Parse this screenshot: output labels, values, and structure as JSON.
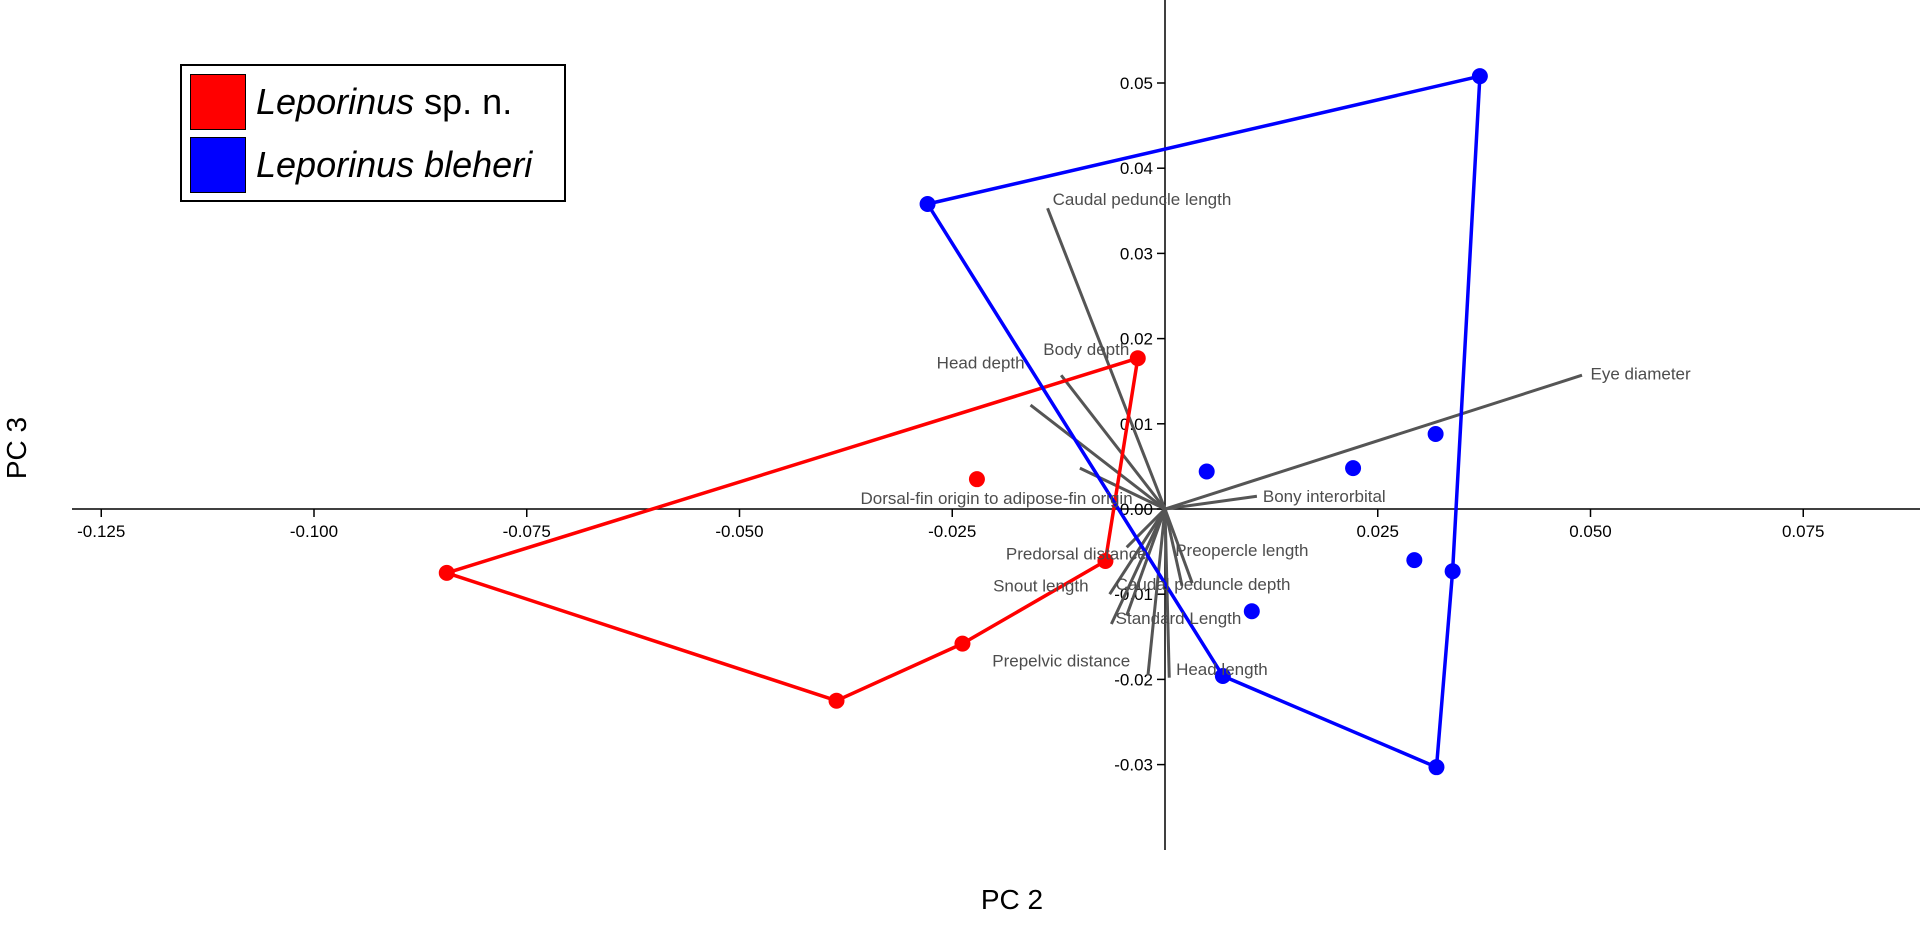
{
  "chart_data": {
    "type": "scatter",
    "title": "",
    "xlabel": "PC 2",
    "ylabel": "PC 3",
    "xlim": [
      -0.14,
      0.09
    ],
    "ylim": [
      -0.04,
      0.06
    ],
    "x_ticks": [
      -0.125,
      -0.1,
      -0.075,
      -0.05,
      -0.025,
      0.025,
      0.05,
      0.075
    ],
    "x_tick_labels": [
      "-0.125",
      "-0.100",
      "-0.075",
      "-0.050",
      "-0.025",
      "0.025",
      "0.050",
      "0.075"
    ],
    "y_ticks": [
      0.05,
      0.04,
      0.03,
      0.02,
      0.01,
      0.0,
      -0.01,
      -0.02,
      -0.03
    ],
    "y_tick_labels": [
      "0.05",
      "0.04",
      "0.03",
      "0.02",
      "0.01",
      "0.00",
      "-0.01",
      "-0.02",
      "-0.03"
    ],
    "grid": false,
    "legend_position": "top-left",
    "series": [
      {
        "name_main": "Leporinus",
        "name_suffix": "sp. n.",
        "color": "#ff0000",
        "points": [
          [
            -0.0844,
            -0.0075
          ],
          [
            -0.0386,
            -0.0225
          ],
          [
            -0.0238,
            -0.0158
          ],
          [
            -0.007,
            -0.0061
          ],
          [
            -0.0032,
            0.0177
          ],
          [
            -0.0221,
            0.0035
          ]
        ],
        "hull": [
          [
            -0.0844,
            -0.0075
          ],
          [
            -0.0386,
            -0.0225
          ],
          [
            -0.0238,
            -0.0158
          ],
          [
            -0.007,
            -0.0061
          ],
          [
            -0.0032,
            0.0177
          ]
        ]
      },
      {
        "name_main": "Leporinus bleheri",
        "name_suffix": "",
        "color": "#0000ff",
        "points": [
          [
            -0.0279,
            0.0358
          ],
          [
            0.037,
            0.0508
          ],
          [
            0.0319,
            -0.0303
          ],
          [
            0.0068,
            -0.0196
          ],
          [
            0.0338,
            -0.0073
          ],
          [
            0.0293,
            -0.006
          ],
          [
            0.0318,
            0.0088
          ],
          [
            0.0221,
            0.0048
          ],
          [
            0.0049,
            0.0044
          ],
          [
            0.0102,
            -0.012
          ]
        ],
        "hull": [
          [
            -0.0279,
            0.0358
          ],
          [
            0.037,
            0.0508
          ],
          [
            0.0338,
            -0.0073
          ],
          [
            0.0319,
            -0.0303
          ],
          [
            0.0068,
            -0.0196
          ]
        ]
      }
    ],
    "loadings": [
      {
        "label": "Caudal peduncle length",
        "tip": [
          -0.0138,
          0.0353
        ],
        "label_at": [
          -0.0132,
          0.0364
        ],
        "anchor": "start"
      },
      {
        "label": "Eye diameter",
        "tip": [
          0.049,
          0.0157
        ],
        "label_at": [
          0.05,
          0.0159
        ],
        "anchor": "start"
      },
      {
        "label": "Head depth",
        "tip": [
          -0.0158,
          0.0122
        ],
        "label_at": [
          -0.0165,
          0.0172
        ],
        "anchor": "end"
      },
      {
        "label": "Body depth",
        "tip": [
          -0.0122,
          0.0157
        ],
        "label_at": [
          -0.0143,
          0.0188
        ],
        "anchor": "start"
      },
      {
        "label": "Bony interorbital",
        "tip": [
          0.0108,
          0.0015
        ],
        "label_at": [
          0.0115,
          0.0015
        ],
        "anchor": "start"
      },
      {
        "label": "Dorsal-fin origin to adipose-fin origin",
        "tip": [
          -0.01,
          0.0048
        ],
        "label_at": [
          -0.0038,
          0.0013
        ],
        "anchor": "end"
      },
      {
        "label": "Predorsal distance",
        "tip": [
          -0.0045,
          -0.0045
        ],
        "label_at": [
          -0.0187,
          -0.0052
        ],
        "anchor": "start"
      },
      {
        "label": "Preopercle length",
        "tip": [
          0.0032,
          -0.0087
        ],
        "label_at": [
          0.0012,
          -0.0048
        ],
        "anchor": "start"
      },
      {
        "label": "Snout length",
        "tip": [
          -0.0065,
          -0.01
        ],
        "label_at": [
          -0.0202,
          -0.009
        ],
        "anchor": "start"
      },
      {
        "label": "Caudal peduncle depth",
        "tip": [
          0.002,
          -0.009
        ],
        "label_at": [
          -0.0058,
          -0.0088
        ],
        "anchor": "start"
      },
      {
        "label": "Standard Length",
        "tip": [
          -0.0063,
          -0.0135
        ],
        "label_at": [
          -0.0058,
          -0.0128
        ],
        "anchor": "start"
      },
      {
        "label": "Prepelvic distance",
        "tip": [
          -0.002,
          -0.0195
        ],
        "label_at": [
          -0.0203,
          -0.0178
        ],
        "anchor": "start"
      },
      {
        "label": "Head length",
        "tip": [
          0.0005,
          -0.0198
        ],
        "label_at": [
          0.0013,
          -0.0188
        ],
        "anchor": "start"
      },
      {
        "label": "",
        "tip": [
          -0.0045,
          -0.0125
        ]
      }
    ]
  },
  "legend": {
    "colors": {
      "red": "#ff0000",
      "blue": "#0000ff"
    }
  }
}
